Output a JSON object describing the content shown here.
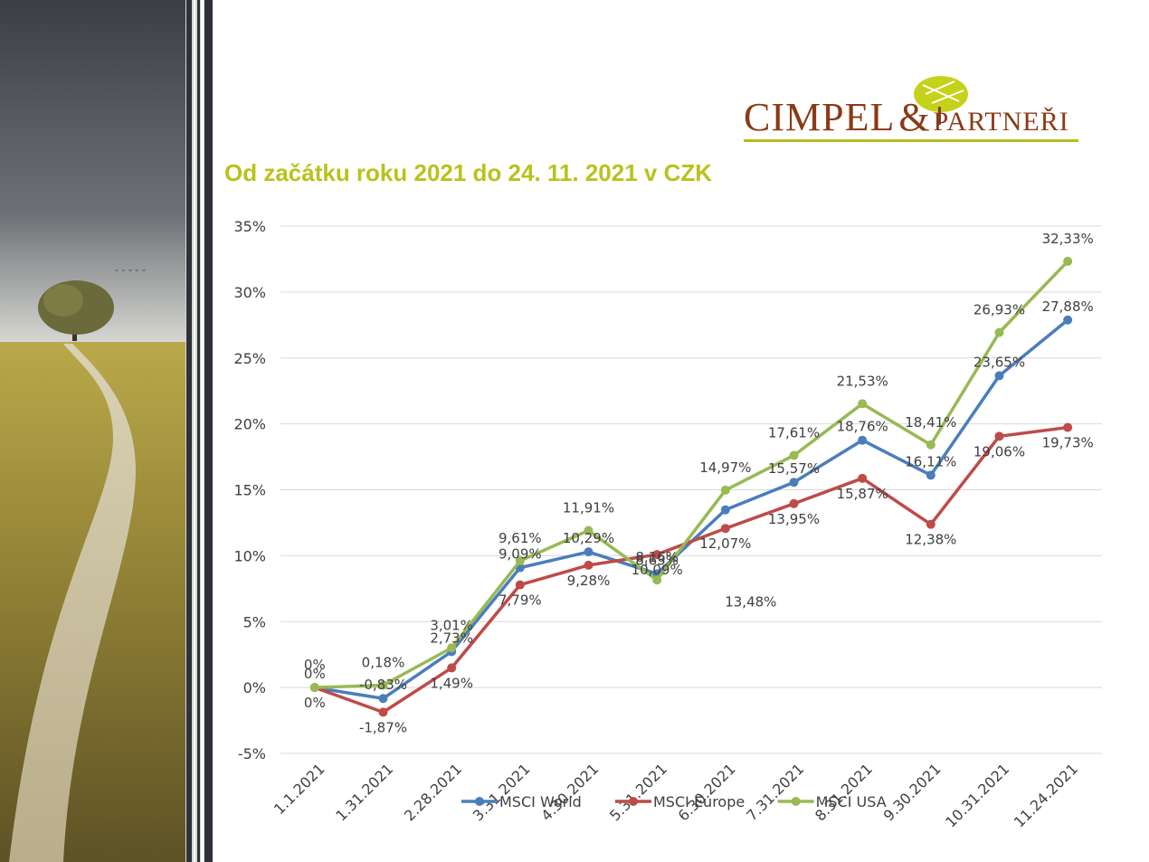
{
  "page": {
    "title": "Od začátku roku 2021 do 24. 11. 2021 v CZK"
  },
  "logo": {
    "brand": "CIMPEL",
    "amp": "&",
    "suffix": "PARTNEŘI",
    "color": "#8a3a17",
    "accent": "#b5bd1a"
  },
  "colors": {
    "title": "#b9c21b",
    "grid": "#d9d9d9"
  },
  "chart_data": {
    "type": "line",
    "title": "",
    "xlabel": "",
    "ylabel": "",
    "categories": [
      "1.1.2021",
      "1.31.2021",
      "2.28.2021",
      "3.31.2021",
      "4.30.2021",
      "5.31.2021",
      "6.30.2021",
      "7.31.2021",
      "8.31.2021",
      "9.30.2021",
      "10.31.2021",
      "11.24.2021"
    ],
    "ylim": [
      -5,
      35
    ],
    "yticks": [
      -5,
      0,
      5,
      10,
      15,
      20,
      25,
      30,
      35
    ],
    "ytick_labels": [
      "-5%",
      "0%",
      "5%",
      "10%",
      "15%",
      "20%",
      "25%",
      "30%",
      "35%"
    ],
    "grid": true,
    "legend": "bottom",
    "series": [
      {
        "name": "MSCI World",
        "color": "#4a7ebb",
        "values": [
          0,
          -0.83,
          2.73,
          9.09,
          10.29,
          8.63,
          13.48,
          15.57,
          18.76,
          16.11,
          23.65,
          27.88
        ],
        "labels": [
          "0%",
          "-0,83%",
          "2,73%",
          "9,09%",
          "10,29%",
          "8,63%",
          "13,48%",
          "15,57%",
          "18,76%",
          "16,11%",
          "23,65%",
          "27,88%"
        ]
      },
      {
        "name": "MSCI Europe",
        "color": "#be4b48",
        "values": [
          0,
          -1.87,
          1.49,
          7.79,
          9.28,
          10.09,
          12.07,
          13.95,
          15.87,
          12.38,
          19.06,
          19.73
        ],
        "labels": [
          "0%",
          "-1,87%",
          "1,49%",
          "7,79%",
          "9,28%",
          "10,09%",
          "12,07%",
          "13,95%",
          "15,87%",
          "12,38%",
          "19,06%",
          "19,73%"
        ]
      },
      {
        "name": "MSCI USA",
        "color": "#98b954",
        "values": [
          0,
          0.18,
          3.01,
          9.61,
          11.91,
          8.16,
          14.97,
          17.61,
          21.53,
          18.41,
          26.93,
          32.33
        ],
        "labels": [
          "0%",
          "0,18%",
          "3,01%",
          "9,61%",
          "11,91%",
          "8,16%",
          "14,97%",
          "17,61%",
          "21,53%",
          "18,41%",
          "26,93%",
          "32,33%"
        ]
      }
    ]
  }
}
